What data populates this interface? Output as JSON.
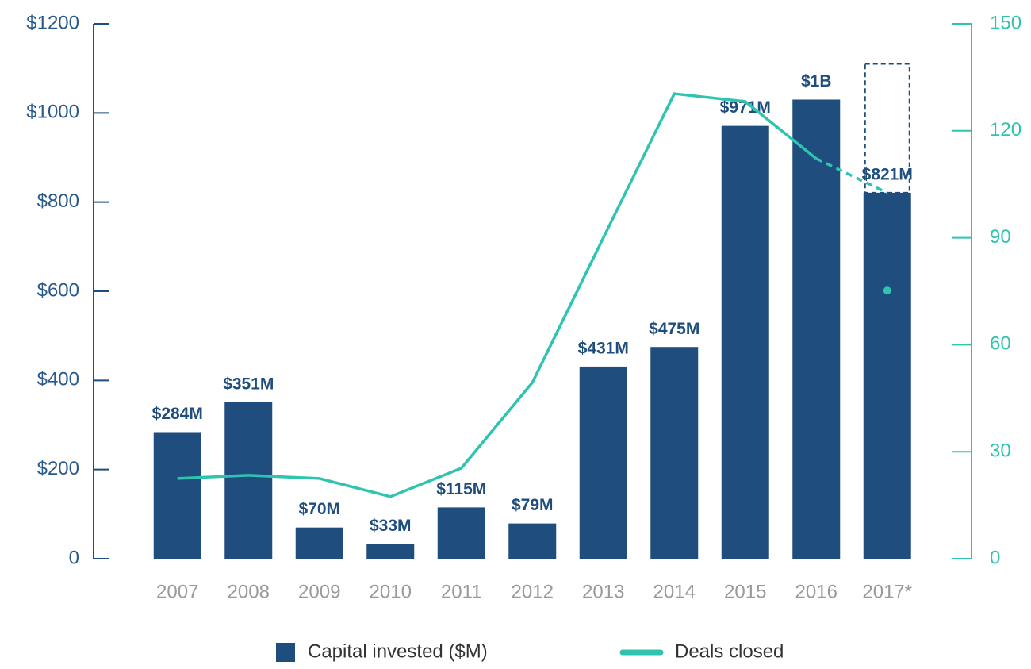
{
  "chart_data": {
    "type": "bar_line",
    "categories": [
      "2007",
      "2008",
      "2009",
      "2010",
      "2011",
      "2012",
      "2013",
      "2014",
      "2015",
      "2016",
      "2017*"
    ],
    "series": [
      {
        "name": "Capital invested ($M)",
        "color": "#1f4e7e",
        "type": "bar",
        "values": [
          284,
          351,
          70,
          33,
          115,
          79,
          431,
          475,
          971,
          1030,
          821
        ],
        "value_labels": [
          "$284M",
          "$351M",
          "$70M",
          "$33M",
          "$115M",
          "$79M",
          "$431M",
          "$475M",
          "$971M",
          "$1B",
          "$821M"
        ],
        "projected_values": [
          null,
          null,
          null,
          null,
          null,
          null,
          null,
          null,
          null,
          null,
          1110
        ]
      },
      {
        "name": "Deals closed",
        "color": "#2ec4b0",
        "type": "line",
        "axis": "y2",
        "values": [
          22.5,
          23.4,
          22.5,
          17.4,
          25.4,
          49.4,
          90,
          130.4,
          128.2,
          112.2,
          75.2
        ],
        "partial_last": true,
        "projected_values": [
          null,
          null,
          null,
          null,
          null,
          null,
          null,
          null,
          null,
          null,
          102.6
        ]
      }
    ],
    "ylim": [
      0,
      1200
    ],
    "yticks": [
      0,
      {
        "value": 200,
        "label": "$200"
      },
      {
        "value": 400,
        "label": "$400"
      },
      {
        "value": 600,
        "label": "$600"
      },
      {
        "value": 800,
        "label": "$800"
      },
      {
        "value": 1000,
        "label": "$1000"
      },
      {
        "value": 1200,
        "label": "$1200"
      }
    ],
    "y2lim": [
      0,
      150
    ],
    "y2ticks": [
      0,
      30,
      60,
      90,
      120,
      150
    ],
    "legend": "bottom"
  }
}
